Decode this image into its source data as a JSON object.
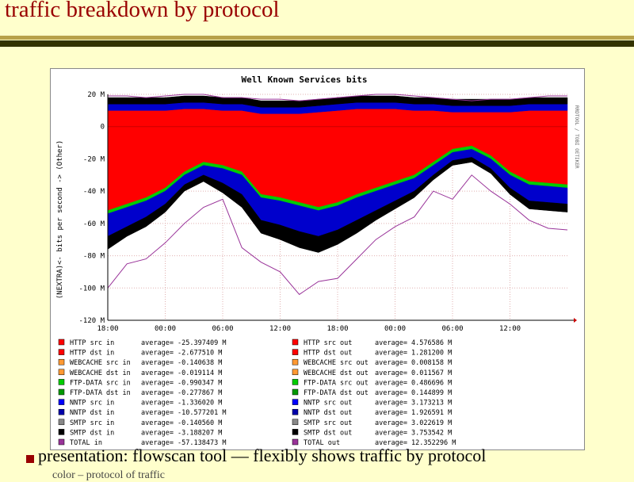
{
  "slide": {
    "title": "traffic breakdown by protocol",
    "bullet": "presentation: flowscan tool  –– flexibly shows traffic by protocol",
    "sub": "color – protocol of traffic"
  },
  "colors": {
    "title": "#990000",
    "background": "#ffffcc",
    "rule_light": "#b8a14a",
    "rule_dark": "#333300"
  },
  "chart_data": {
    "type": "area",
    "title": "Well Known Services bits",
    "ylabel": "(NEXTRA)<- bits per second -> (Other)",
    "side_label": "RRDTOOL / TOBI OETIKER",
    "ylim": [
      -120,
      20
    ],
    "yticks": [
      20,
      0,
      -20,
      -40,
      -60,
      -80,
      -100,
      -120
    ],
    "ytick_labels": [
      "20 M",
      "0",
      "-20 M",
      "-40 M",
      "-60 M",
      "-80 M",
      "-100 M",
      "-120 M"
    ],
    "x_tick_labels": [
      "18:00",
      "00:00",
      "06:00",
      "12:00",
      "18:00",
      "00:00",
      "06:00",
      "12:00"
    ],
    "x": [
      0,
      2,
      4,
      6,
      8,
      10,
      12,
      14,
      16,
      18,
      20,
      22,
      24,
      26,
      28,
      30,
      32,
      34,
      36,
      38,
      40,
      42,
      44,
      46,
      48
    ],
    "x_units": "hours from first 18:00 tick",
    "stacks_out": [
      {
        "name": "HTTP src out",
        "color": "#ff0000",
        "values": [
          10,
          10,
          10,
          10,
          11,
          11,
          10,
          10,
          8,
          8,
          8,
          9,
          10,
          11,
          11,
          11,
          10,
          10,
          9,
          9,
          9,
          9,
          10,
          10,
          10
        ]
      },
      {
        "name": "NNTP",
        "color": "#0000cc",
        "values": [
          4,
          4,
          4,
          4,
          4,
          4,
          4,
          4,
          4,
          4,
          4,
          4,
          4,
          4,
          4,
          4,
          4,
          4,
          4,
          4,
          4,
          4,
          4,
          4,
          4
        ]
      },
      {
        "name": "SMTP",
        "color": "#000000",
        "values": [
          4,
          4,
          4,
          4,
          4,
          4,
          4,
          4,
          4,
          4,
          4,
          4,
          4,
          4,
          4,
          4,
          4,
          4,
          4,
          4,
          4,
          4,
          4,
          4,
          4
        ]
      }
    ],
    "total_out": [
      19,
      19,
      18,
      19,
      20,
      20,
      18,
      18,
      17,
      17,
      16,
      17,
      18,
      19,
      20,
      20,
      19,
      18,
      17,
      16,
      17,
      17,
      18,
      19,
      19
    ],
    "stacks_in": [
      {
        "name": "HTTP src in",
        "color": "#ff0000",
        "values": [
          -52,
          -48,
          -44,
          -38,
          -28,
          -22,
          -24,
          -28,
          -42,
          -44,
          -47,
          -50,
          -47,
          -42,
          -38,
          -34,
          -30,
          -22,
          -14,
          -12,
          -18,
          -28,
          -34,
          -35,
          -36
        ]
      },
      {
        "name": "FTP-DATA",
        "color": "#00cc00",
        "values": [
          -2,
          -2,
          -2,
          -2,
          -2,
          -2,
          -2,
          -2,
          -2,
          -2,
          -2,
          -2,
          -2,
          -2,
          -2,
          -2,
          -2,
          -2,
          -2,
          -2,
          -2,
          -2,
          -2,
          -2,
          -2
        ]
      },
      {
        "name": "NNTP",
        "color": "#0000cc",
        "values": [
          -14,
          -12,
          -10,
          -8,
          -6,
          -6,
          -9,
          -12,
          -14,
          -15,
          -16,
          -16,
          -15,
          -14,
          -12,
          -10,
          -8,
          -6,
          -5,
          -5,
          -6,
          -8,
          -10,
          -10,
          -10
        ]
      },
      {
        "name": "SMTP",
        "color": "#000000",
        "values": [
          -8,
          -6,
          -6,
          -5,
          -4,
          -4,
          -6,
          -8,
          -8,
          -9,
          -10,
          -10,
          -9,
          -8,
          -6,
          -5,
          -4,
          -3,
          -3,
          -3,
          -3,
          -4,
          -5,
          -5,
          -5
        ]
      }
    ],
    "total_in": [
      -100,
      -85,
      -82,
      -72,
      -60,
      -50,
      -45,
      -75,
      -84,
      -90,
      -104,
      -96,
      -94,
      -82,
      -70,
      -62,
      -56,
      -40,
      -45,
      -30,
      -40,
      -48,
      -58,
      -63,
      -64
    ],
    "legend": [
      {
        "color": "#ff0000",
        "label": "HTTP src in",
        "avg": "average= -25.397409 M"
      },
      {
        "color": "#ff0000",
        "label": "HTTP src out",
        "avg": "average= 4.576586 M"
      },
      {
        "color": "#ff0000",
        "label": "HTTP dst in",
        "avg": "average= -2.677510 M"
      },
      {
        "color": "#ff0000",
        "label": "HTTP dst out",
        "avg": "average= 1.281200 M"
      },
      {
        "color": "#ff9933",
        "label": "WEBCACHE src in",
        "avg": "average= -0.140638 M"
      },
      {
        "color": "#ff9933",
        "label": "WEBCACHE src out",
        "avg": "average= 0.008158 M"
      },
      {
        "color": "#ff9933",
        "label": "WEBCACHE dst in",
        "avg": "average= -0.019114 M"
      },
      {
        "color": "#ff9933",
        "label": "WEBCACHE dst out",
        "avg": "average= 0.011567 M"
      },
      {
        "color": "#00cc00",
        "label": "FTP-DATA src in",
        "avg": "average= -0.990347 M"
      },
      {
        "color": "#00cc00",
        "label": "FTP-DATA src out",
        "avg": "average= 0.486696 M"
      },
      {
        "color": "#009900",
        "label": "FTP-DATA dst in",
        "avg": "average= -0.277867 M"
      },
      {
        "color": "#009900",
        "label": "FTP-DATA dst out",
        "avg": "average= 0.144899 M"
      },
      {
        "color": "#0000ff",
        "label": "NNTP src in",
        "avg": "average= -1.336020 M"
      },
      {
        "color": "#0000ff",
        "label": "NNTP src out",
        "avg": "average= 3.173213 M"
      },
      {
        "color": "#0000aa",
        "label": "NNTP dst in",
        "avg": "average= -10.577201 M"
      },
      {
        "color": "#0000aa",
        "label": "NNTP dst out",
        "avg": "average= 1.926591 M"
      },
      {
        "color": "#888888",
        "label": "SMTP src in",
        "avg": "average= -0.140560 M"
      },
      {
        "color": "#888888",
        "label": "SMTP src out",
        "avg": "average= 3.022619 M"
      },
      {
        "color": "#000000",
        "label": "SMTP dst in",
        "avg": "average= -3.188207 M"
      },
      {
        "color": "#000000",
        "label": "SMTP dst out",
        "avg": "average= 3.753542 M"
      },
      {
        "color": "#993399",
        "label": "TOTAL in",
        "avg": "average= -57.138473 M"
      },
      {
        "color": "#993399",
        "label": "TOTAL out",
        "avg": "average= 12.352296 M"
      }
    ]
  }
}
